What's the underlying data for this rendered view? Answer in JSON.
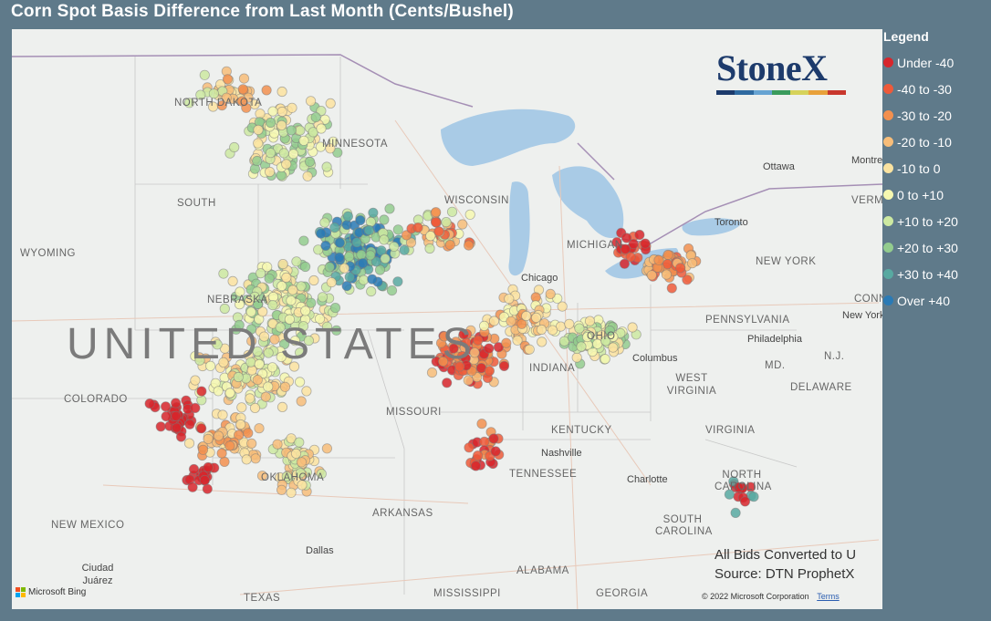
{
  "title": "Corn Spot Basis Difference from Last Month (Cents/Bushel)",
  "brand": {
    "name": "StoneX",
    "bar_colors": [
      "#1d3b6c",
      "#2f6aa0",
      "#66a3d2",
      "#3a9b5c",
      "#d6d25a",
      "#e8a13a",
      "#c8372c"
    ]
  },
  "legend": {
    "title": "Legend",
    "items": [
      {
        "label": "Under -40",
        "color": "#d7262c"
      },
      {
        "label": "-40 to -30",
        "color": "#ee5a3a"
      },
      {
        "label": "-30 to -20",
        "color": "#f2904f"
      },
      {
        "label": "-20 to -10",
        "color": "#f7bd79"
      },
      {
        "label": "-10 to 0",
        "color": "#fbe3a0"
      },
      {
        "label": "0 to +10",
        "color": "#f6f8b0"
      },
      {
        "label": "+10 to +20",
        "color": "#cde9a1"
      },
      {
        "label": "+20 to +30",
        "color": "#93cc8e"
      },
      {
        "label": "+30 to +40",
        "color": "#58a9a1"
      },
      {
        "label": "Over +40",
        "color": "#2a7ab5"
      }
    ]
  },
  "map": {
    "country_label": "UNITED STATES",
    "state_labels": [
      "NORTH DAKOTA",
      "MINNESOTA",
      "SOUTH",
      "WISCONSIN",
      "WYOMING",
      "NEBRASKA",
      "COLORADO",
      "MISSOURI",
      "OKLAHOMA",
      "ARKANSAS",
      "NEW MEXICO",
      "TEXAS",
      "MISSISSIPPI",
      "ALABAMA",
      "GEORGIA",
      "TENNESSEE",
      "KENTUCKY",
      "INDIANA",
      "OHIO",
      "WEST VIRGINIA",
      "VIRGINIA",
      "NORTH CAROLINA",
      "SOUTH CAROLINA",
      "PENNSYLVANIA",
      "NEW YORK",
      "MICHIGAN",
      "MD.",
      "DELAWARE",
      "N.J.",
      "VERMONT",
      "CONN."
    ],
    "city_labels": [
      "Ottawa",
      "Montreal",
      "Toronto",
      "Chicago",
      "Columbus",
      "Philadelphia",
      "New York",
      "Nashville",
      "Charlotte",
      "Dallas",
      "Ciudad Juárez"
    ],
    "source_line1": "All Bids Converted to U",
    "source_line2": "Source: DTN ProphetX",
    "attribution": "Microsoft Bing",
    "copyright": "© 2022 Microsoft Corporation",
    "terms": "Terms"
  }
}
